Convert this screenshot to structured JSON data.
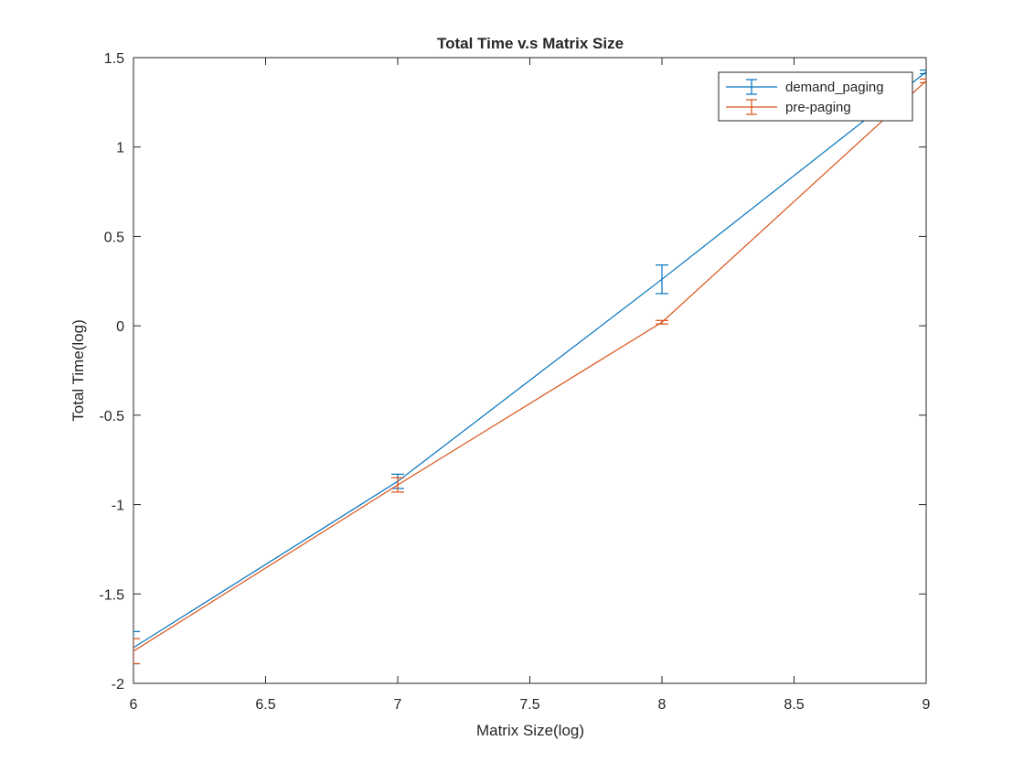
{
  "chart_data": {
    "type": "line",
    "title": "Total Time v.s Matrix Size",
    "xlabel": "Matrix Size(log)",
    "ylabel": "Total Time(log)",
    "xlim": [
      6,
      9
    ],
    "ylim": [
      -2,
      1.5
    ],
    "x_ticks": [
      6,
      6.5,
      7,
      7.5,
      8,
      8.5,
      9
    ],
    "x_tick_labels": [
      "6",
      "6.5",
      "7",
      "7.5",
      "8",
      "8.5",
      "9"
    ],
    "y_ticks": [
      -2,
      -1.5,
      -1,
      -0.5,
      0,
      0.5,
      1,
      1.5
    ],
    "y_tick_labels": [
      "-2",
      "-1.5",
      "-1",
      "-0.5",
      "0",
      "0.5",
      "1",
      "1.5"
    ],
    "grid": false,
    "legend_position": "top-right",
    "error_bars": true,
    "series": [
      {
        "name": "demand_paging",
        "color": "#0072BD",
        "x": [
          6,
          7,
          8,
          9
        ],
        "y": [
          -1.8,
          -0.87,
          0.26,
          1.42
        ],
        "err_low": [
          -1.89,
          -0.91,
          0.18,
          1.41
        ],
        "err_high": [
          -1.71,
          -0.83,
          0.34,
          1.43
        ]
      },
      {
        "name": "pre-paging",
        "color": "#D95319",
        "x": [
          6,
          7,
          8,
          9
        ],
        "y": [
          -1.82,
          -0.89,
          0.02,
          1.37
        ],
        "err_low": [
          -1.89,
          -0.93,
          0.01,
          1.36
        ],
        "err_high": [
          -1.75,
          -0.85,
          0.03,
          1.38
        ]
      }
    ]
  }
}
